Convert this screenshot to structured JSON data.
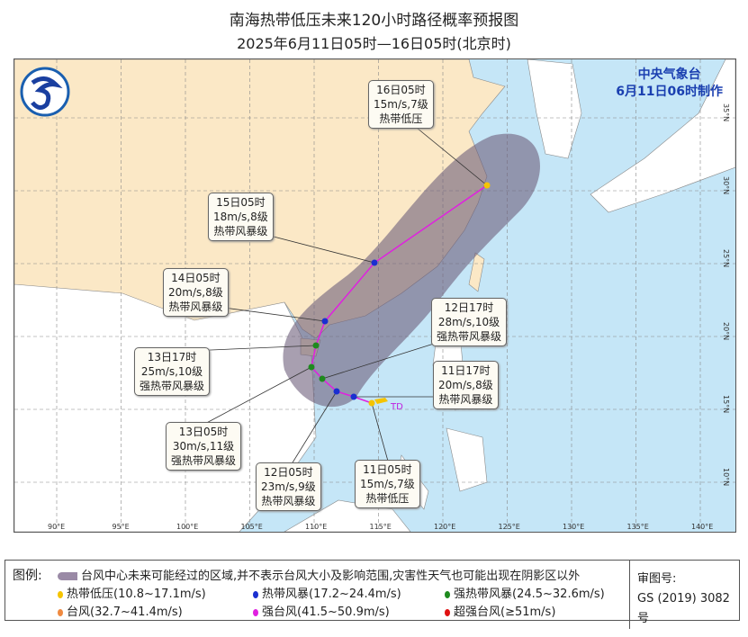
{
  "title": "南海热带低压未来120小时路径概率预报图",
  "subtitle": "2025年6月11日05时—16日05时(北京时)",
  "organization": {
    "name": "中央气象台",
    "issued": "6月11日06时制作"
  },
  "axes": {
    "lon": [
      "90°E",
      "95°E",
      "100°E",
      "105°E",
      "110°E",
      "115°E",
      "120°E",
      "125°E",
      "130°E",
      "135°E",
      "140°E"
    ],
    "lat": [
      "35°N",
      "30°N",
      "25°N",
      "20°N",
      "15°N",
      "10°N"
    ]
  },
  "storm_label": "TD",
  "colors": {
    "land_china": "#fbe8c6",
    "land_foreign": "#ffffff",
    "sea": "#c5e6f7",
    "cone": "#7a6a86",
    "track": "#e020e0",
    "td": "#f5c400",
    "ts": "#1a2fd0",
    "sts": "#1e8a1e",
    "ty": "#f08a40",
    "sty": "#e020e0",
    "super": "#e01010"
  },
  "track": [
    {
      "time": "11日05时",
      "wind": "15m/s,7级",
      "level": "热带低压",
      "cat": "td"
    },
    {
      "time": "11日17时",
      "wind": "20m/s,8级",
      "level": "热带风暴级",
      "cat": "ts"
    },
    {
      "time": "12日05时",
      "wind": "23m/s,9级",
      "level": "热带风暴级",
      "cat": "ts"
    },
    {
      "time": "12日17时",
      "wind": "28m/s,10级",
      "level": "强热带风暴级",
      "cat": "sts"
    },
    {
      "time": "13日05时",
      "wind": "30m/s,11级",
      "level": "强热带风暴级",
      "cat": "sts"
    },
    {
      "time": "13日17时",
      "wind": "25m/s,10级",
      "level": "强热带风暴级",
      "cat": "sts"
    },
    {
      "time": "14日05时",
      "wind": "20m/s,8级",
      "level": "热带风暴级",
      "cat": "ts"
    },
    {
      "time": "15日05时",
      "wind": "18m/s,8级",
      "level": "热带风暴级",
      "cat": "ts"
    },
    {
      "time": "16日05时",
      "wind": "15m/s,7级",
      "level": "热带低压",
      "cat": "td"
    }
  ],
  "legend": {
    "heading": "图例:",
    "cone": "台风中心未来可能经过的区域,并不表示台风大小及影响范围,灾害性天气也可能出现在阴影区以外",
    "items": [
      "热带低压(10.8~17.1m/s)",
      "热带风暴(17.2~24.4m/s)",
      "强热带风暴(24.5~32.6m/s)",
      "台风(32.7~41.4m/s)",
      "强台风(41.5~50.9m/s)",
      "超强台风(≥51m/s)"
    ]
  },
  "approval": {
    "label": "审图号:",
    "number": "GS (2019) 3082号"
  }
}
